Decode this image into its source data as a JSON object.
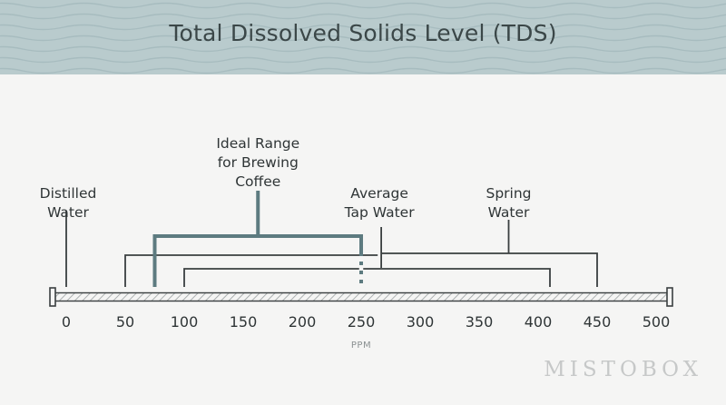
{
  "title": "Total Dissolved Solids Level (TDS)",
  "brand": "MISTOBOX",
  "colors": {
    "header_bg": "#b9cbcd",
    "wave": "#a7bcbf",
    "ink": "#3a3f40",
    "accent": "#5d7b80"
  },
  "chart_data": {
    "type": "range",
    "title": "Total Dissolved Solids Level (TDS)",
    "xlabel": "PPM",
    "xlim": [
      0,
      500
    ],
    "ticks": [
      0,
      50,
      100,
      150,
      200,
      250,
      300,
      350,
      400,
      450,
      500
    ],
    "points": [
      {
        "name": "Distilled Water",
        "value": 0
      }
    ],
    "ranges": [
      {
        "name": "Ideal Range for Brewing Coffee",
        "from": 75,
        "to": 250,
        "highlight": true
      },
      {
        "name": "Average Tap Water",
        "from": 50,
        "to": 250
      },
      {
        "name": "Spring Water",
        "from": 100,
        "to": 450
      }
    ],
    "label_lines": {
      "distilled": [
        "Distilled",
        "Water"
      ],
      "ideal": [
        "Ideal Range",
        "for Brewing",
        "Coffee"
      ],
      "tap": [
        "Average",
        "Tap Water"
      ],
      "spring": [
        "Spring",
        "Water"
      ]
    }
  }
}
